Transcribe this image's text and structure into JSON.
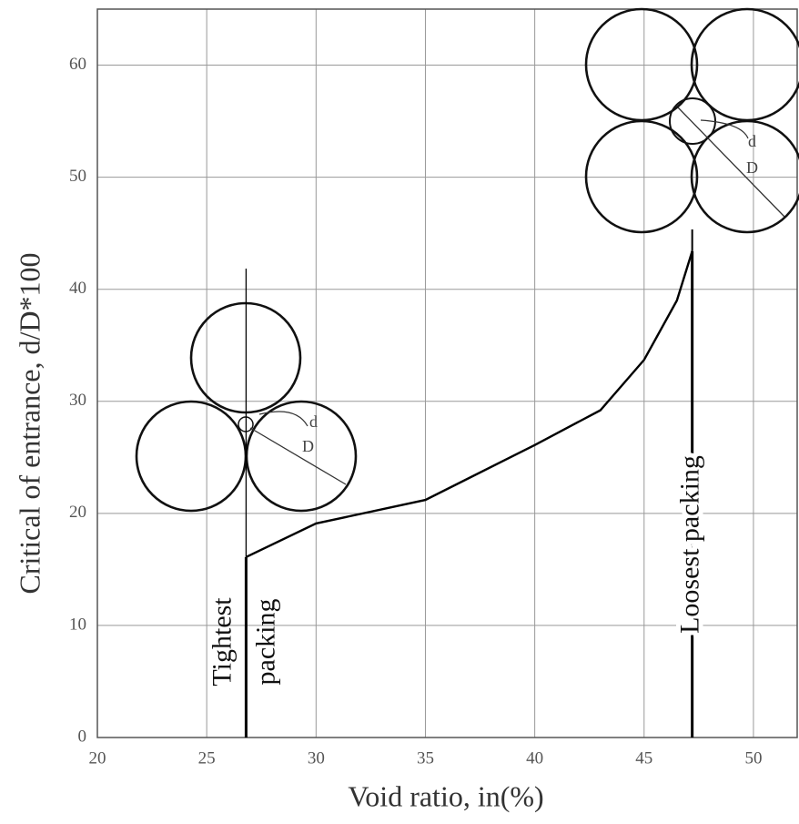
{
  "chart_data": {
    "type": "line",
    "x_label": "Void ratio, in(%)",
    "y_label": "Critical of entrance, d/D*100",
    "x": [
      26.8,
      30,
      35,
      40,
      43,
      45,
      46.5,
      47.2
    ],
    "series": [
      {
        "color": "#000000",
        "values": [
          16.1,
          19.1,
          21.2,
          26.1,
          29.2,
          33.7,
          39,
          43.4
        ]
      }
    ],
    "xlim": [
      20,
      52
    ],
    "xticks": [
      20,
      25,
      30,
      35,
      40,
      45,
      50
    ],
    "ylim": [
      0,
      65
    ],
    "yticks": [
      0,
      10,
      20,
      30,
      40,
      50,
      60
    ],
    "grid": true,
    "markers": [
      {
        "x": 26.8,
        "label": [
          "Tightest",
          "packing"
        ]
      },
      {
        "x": 47.2,
        "label": [
          "Loosest packing"
        ]
      }
    ],
    "annotations": {
      "tight": [
        "d",
        "D"
      ],
      "loose": [
        "d",
        "D"
      ]
    }
  }
}
